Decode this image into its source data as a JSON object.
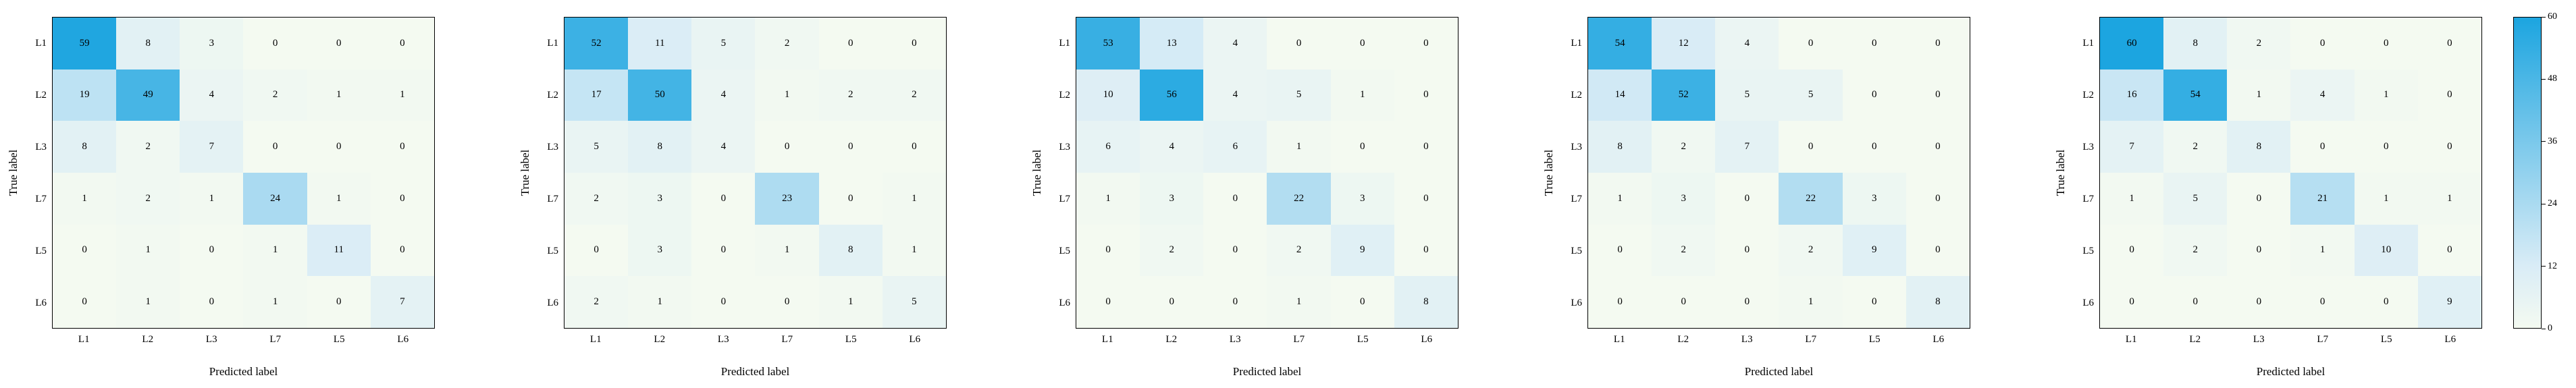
{
  "figure": {
    "ylabel": "True label",
    "xlabel": "Predicted label",
    "class_labels": [
      "L1",
      "L2",
      "L3",
      "L7",
      "L5",
      "L6"
    ]
  },
  "colors": {
    "low": "#f4faf1",
    "mid": "#d9ecf6",
    "high": "#1ca5e0",
    "cell_text": "#000000",
    "border": "#000000",
    "background": "#ffffff"
  },
  "colorbar": {
    "vmin": 0,
    "vmax": 60,
    "ticks": [
      "0",
      "12",
      "24",
      "36",
      "48",
      "60"
    ]
  },
  "chart_data": [
    {
      "type": "heatmap",
      "title": "",
      "xlabel": "Predicted label",
      "ylabel": "True label",
      "x_labels": [
        "L1",
        "L2",
        "L3",
        "L7",
        "L5",
        "L6"
      ],
      "y_labels": [
        "L1",
        "L2",
        "L3",
        "L7",
        "L5",
        "L6"
      ],
      "vmin": 0,
      "vmax": 60,
      "values": [
        [
          59,
          8,
          3,
          0,
          0,
          0
        ],
        [
          19,
          49,
          4,
          2,
          1,
          1
        ],
        [
          8,
          2,
          7,
          0,
          0,
          0
        ],
        [
          1,
          2,
          1,
          24,
          1,
          0
        ],
        [
          0,
          1,
          0,
          1,
          11,
          0
        ],
        [
          0,
          1,
          0,
          1,
          0,
          7
        ]
      ]
    },
    {
      "type": "heatmap",
      "title": "",
      "xlabel": "Predicted label",
      "ylabel": "True label",
      "x_labels": [
        "L1",
        "L2",
        "L3",
        "L7",
        "L5",
        "L6"
      ],
      "y_labels": [
        "L1",
        "L2",
        "L3",
        "L7",
        "L5",
        "L6"
      ],
      "vmin": 0,
      "vmax": 60,
      "values": [
        [
          52,
          11,
          5,
          2,
          0,
          0
        ],
        [
          17,
          50,
          4,
          1,
          2,
          2
        ],
        [
          5,
          8,
          4,
          0,
          0,
          0
        ],
        [
          2,
          3,
          0,
          23,
          0,
          1
        ],
        [
          0,
          3,
          0,
          1,
          8,
          1
        ],
        [
          2,
          1,
          0,
          0,
          1,
          5
        ]
      ]
    },
    {
      "type": "heatmap",
      "title": "",
      "xlabel": "Predicted label",
      "ylabel": "True label",
      "x_labels": [
        "L1",
        "L2",
        "L3",
        "L7",
        "L5",
        "L6"
      ],
      "y_labels": [
        "L1",
        "L2",
        "L3",
        "L7",
        "L5",
        "L6"
      ],
      "vmin": 0,
      "vmax": 60,
      "values": [
        [
          53,
          13,
          4,
          0,
          0,
          0
        ],
        [
          10,
          56,
          4,
          5,
          1,
          0
        ],
        [
          6,
          4,
          6,
          1,
          0,
          0
        ],
        [
          1,
          3,
          0,
          22,
          3,
          0
        ],
        [
          0,
          2,
          0,
          2,
          9,
          0
        ],
        [
          0,
          0,
          0,
          1,
          0,
          8
        ]
      ]
    },
    {
      "type": "heatmap",
      "title": "",
      "xlabel": "Predicted label",
      "ylabel": "True label",
      "x_labels": [
        "L1",
        "L2",
        "L3",
        "L7",
        "L5",
        "L6"
      ],
      "y_labels": [
        "L1",
        "L2",
        "L3",
        "L7",
        "L5",
        "L6"
      ],
      "vmin": 0,
      "vmax": 60,
      "values": [
        [
          54,
          12,
          4,
          0,
          0,
          0
        ],
        [
          14,
          52,
          5,
          5,
          0,
          0
        ],
        [
          8,
          2,
          7,
          0,
          0,
          0
        ],
        [
          1,
          3,
          0,
          22,
          3,
          0
        ],
        [
          0,
          2,
          0,
          2,
          9,
          0
        ],
        [
          0,
          0,
          0,
          1,
          0,
          8
        ]
      ]
    },
    {
      "type": "heatmap",
      "title": "",
      "xlabel": "Predicted label",
      "ylabel": "True label",
      "x_labels": [
        "L1",
        "L2",
        "L3",
        "L7",
        "L5",
        "L6"
      ],
      "y_labels": [
        "L1",
        "L2",
        "L3",
        "L7",
        "L5",
        "L6"
      ],
      "vmin": 0,
      "vmax": 60,
      "values": [
        [
          60,
          8,
          2,
          0,
          0,
          0
        ],
        [
          16,
          54,
          1,
          4,
          1,
          0
        ],
        [
          7,
          2,
          8,
          0,
          0,
          0
        ],
        [
          1,
          5,
          0,
          21,
          1,
          1
        ],
        [
          0,
          2,
          0,
          1,
          10,
          0
        ],
        [
          0,
          0,
          0,
          0,
          0,
          9
        ]
      ]
    }
  ]
}
